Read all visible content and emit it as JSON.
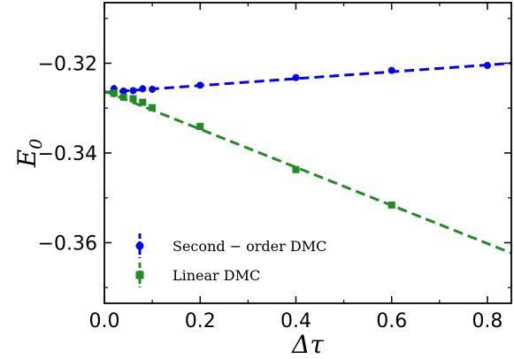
{
  "chart_data": {
    "type": "scatter",
    "xlabel": "Δτ",
    "ylabel": "E",
    "ylabel_subscript": "0",
    "xlim": [
      0.0,
      0.85
    ],
    "ylim": [
      -0.3735,
      -0.3065
    ],
    "xticks": [
      0.0,
      0.2,
      0.4,
      0.6,
      0.8
    ],
    "xtick_labels": [
      "0.0",
      "0.2",
      "0.4",
      "0.6",
      "0.8"
    ],
    "yticks": [
      -0.32,
      -0.34,
      -0.36
    ],
    "ytick_labels": [
      "−0.32",
      "−0.34",
      "−0.36"
    ],
    "minor_xticks": [
      0.1,
      0.3,
      0.5,
      0.7
    ],
    "minor_yticks": [
      -0.31,
      -0.33,
      -0.35,
      -0.37
    ],
    "grid": false,
    "legend_position": "lower-left",
    "series": [
      {
        "name": "Second − order DMC",
        "color": "#0000ff",
        "marker": "circle",
        "x": [
          0.02,
          0.04,
          0.06,
          0.08,
          0.1,
          0.2,
          0.4,
          0.6,
          0.8
        ],
        "y": [
          -0.3257,
          -0.3262,
          -0.3261,
          -0.3257,
          -0.3258,
          -0.3249,
          -0.3232,
          -0.3216,
          -0.3205
        ],
        "yerr": [
          0.0009,
          0.0008,
          0.0008,
          0.0008,
          0.0008,
          0.0006,
          0.0005,
          0.0004,
          0.0004
        ],
        "fit": {
          "x": [
            0.0,
            0.85
          ],
          "y": [
            -0.3265,
            -0.32
          ]
        }
      },
      {
        "name": "Linear DMC",
        "color": "#228b22",
        "marker": "square",
        "x": [
          0.02,
          0.04,
          0.06,
          0.08,
          0.1,
          0.2,
          0.4,
          0.6
        ],
        "y": [
          -0.3267,
          -0.3276,
          -0.3279,
          -0.3287,
          -0.3299,
          -0.3341,
          -0.3437,
          -0.3516
        ],
        "yerr": [
          0.0009,
          0.0008,
          0.0008,
          0.0007,
          0.0007,
          0.0006,
          0.0006,
          0.0005
        ],
        "fit": {
          "x": [
            0.0,
            0.85
          ],
          "y": [
            -0.3262,
            -0.3623
          ]
        }
      }
    ]
  }
}
